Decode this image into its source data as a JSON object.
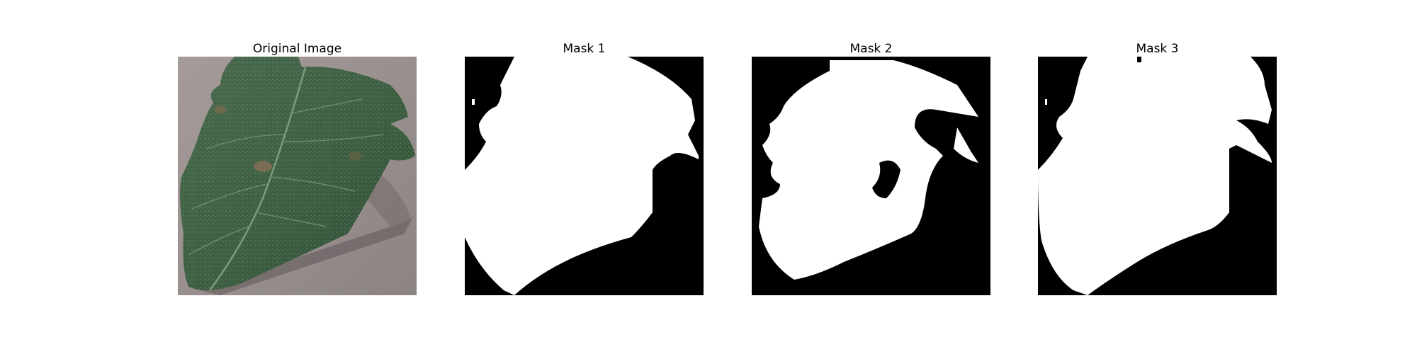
{
  "figure": {
    "panels": [
      {
        "title": "Original Image",
        "content": "photo"
      },
      {
        "title": "Mask 1",
        "content": "mask"
      },
      {
        "title": "Mask 2",
        "content": "mask"
      },
      {
        "title": "Mask 3",
        "content": "mask"
      }
    ]
  },
  "colors": {
    "background": "#ffffff",
    "mask_foreground": "#ffffff",
    "mask_background": "#000000",
    "leaf": "#3d5a40",
    "surface": "#9a9090"
  }
}
